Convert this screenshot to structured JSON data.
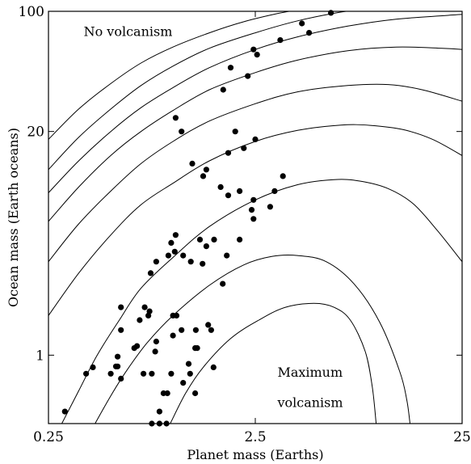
{
  "chart_data": {
    "type": "scatter",
    "title": "",
    "xlabel": "Planet mass (Earths)",
    "ylabel": "Ocean mass (Earth oceans)",
    "xscale": "log",
    "yscale": "log",
    "xlim": [
      0.25,
      25
    ],
    "ylim": [
      0.4,
      100
    ],
    "xticks": [
      0.25,
      2.5,
      25
    ],
    "xtick_labels": [
      "0.25",
      "2.5",
      "25"
    ],
    "yticks": [
      1,
      20,
      100
    ],
    "ytick_labels": [
      "1",
      "20",
      "100"
    ],
    "grid": false,
    "annotations": [
      {
        "text": "No volcanism",
        "x": 0.37,
        "y": 72
      },
      {
        "text": "Maximum",
        "x": 3.2,
        "y": 0.75
      },
      {
        "text": "volcanism",
        "x": 3.2,
        "y": 0.5
      }
    ],
    "points": [
      [
        0.3,
        0.47
      ],
      [
        0.38,
        0.78
      ],
      [
        0.41,
        0.85
      ],
      [
        0.5,
        0.78
      ],
      [
        0.54,
        0.86
      ],
      [
        0.56,
        0.73
      ],
      [
        0.54,
        0.98
      ],
      [
        0.56,
        1.4
      ],
      [
        0.53,
        0.86
      ],
      [
        0.56,
        1.9
      ],
      [
        0.65,
        1.1
      ],
      [
        0.67,
        1.13
      ],
      [
        0.69,
        1.6
      ],
      [
        0.72,
        0.78
      ],
      [
        0.73,
        1.9
      ],
      [
        0.76,
        1.7
      ],
      [
        0.77,
        1.8
      ],
      [
        0.78,
        3.0
      ],
      [
        0.83,
        1.2
      ],
      [
        0.79,
        0.78
      ],
      [
        0.82,
        1.05
      ],
      [
        0.86,
        0.47
      ],
      [
        0.9,
        0.6
      ],
      [
        0.94,
        0.6
      ],
      [
        0.98,
        0.78
      ],
      [
        1.0,
        1.7
      ],
      [
        1.0,
        1.3
      ],
      [
        1.04,
        1.7
      ],
      [
        1.1,
        1.4
      ],
      [
        1.12,
        0.69
      ],
      [
        1.28,
        0.6
      ],
      [
        1.19,
        0.89
      ],
      [
        1.21,
        0.78
      ],
      [
        1.29,
        1.4
      ],
      [
        1.28,
        1.1
      ],
      [
        1.31,
        1.1
      ],
      [
        1.48,
        1.5
      ],
      [
        1.53,
        1.4
      ],
      [
        1.57,
        0.85
      ],
      [
        0.79,
        0.4
      ],
      [
        0.86,
        0.4
      ],
      [
        0.93,
        0.4
      ],
      [
        0.83,
        3.5
      ],
      [
        0.95,
        3.8
      ],
      [
        0.98,
        4.5
      ],
      [
        1.02,
        4.0
      ],
      [
        1.12,
        3.8
      ],
      [
        1.22,
        3.5
      ],
      [
        1.35,
        4.7
      ],
      [
        1.39,
        3.4
      ],
      [
        1.45,
        4.3
      ],
      [
        1.58,
        4.7
      ],
      [
        1.82,
        3.8
      ],
      [
        1.74,
        2.6
      ],
      [
        1.03,
        5.0
      ],
      [
        1.1,
        20.0
      ],
      [
        1.03,
        24.0
      ],
      [
        1.24,
        13.0
      ],
      [
        1.4,
        11.0
      ],
      [
        1.45,
        12.0
      ],
      [
        1.7,
        9.5
      ],
      [
        1.85,
        8.5
      ],
      [
        2.1,
        4.7
      ],
      [
        2.4,
        7.0
      ],
      [
        2.45,
        6.2
      ],
      [
        2.1,
        9.0
      ],
      [
        2.45,
        8.0
      ],
      [
        2.95,
        7.3
      ],
      [
        1.85,
        15.0
      ],
      [
        2.0,
        20.0
      ],
      [
        2.2,
        16.0
      ],
      [
        2.5,
        18.0
      ],
      [
        3.4,
        11.0
      ],
      [
        3.1,
        9.0
      ],
      [
        1.75,
        35.0
      ],
      [
        1.9,
        47.0
      ],
      [
        2.3,
        42.0
      ],
      [
        2.55,
        56.0
      ],
      [
        3.3,
        68.0
      ],
      [
        4.2,
        85.0
      ],
      [
        4.55,
        75.0
      ],
      [
        5.8,
        98.0
      ],
      [
        2.45,
        60.0
      ]
    ],
    "point_color": "#000000",
    "curves": [
      {
        "name": "",
        "xy": [
          [
            0.25,
            18.0
          ],
          [
            0.35,
            27.0
          ],
          [
            0.5,
            38.0
          ],
          [
            0.7,
            50.0
          ],
          [
            1.0,
            62.0
          ],
          [
            1.5,
            75.0
          ],
          [
            2.2,
            87.0
          ],
          [
            3.2,
            97.0
          ],
          [
            4.2,
            103.0
          ]
        ]
      },
      {
        "name": "",
        "xy": [
          [
            0.25,
            12.0
          ],
          [
            0.35,
            18.5
          ],
          [
            0.5,
            27.0
          ],
          [
            0.7,
            37.0
          ],
          [
            1.0,
            48.0
          ],
          [
            1.5,
            61.0
          ],
          [
            2.5,
            75.0
          ],
          [
            4.0,
            88.0
          ],
          [
            6.5,
            99.0
          ],
          [
            9.0,
            104.0
          ]
        ]
      },
      {
        "name": "",
        "xy": [
          [
            0.25,
            8.8
          ],
          [
            0.35,
            13.5
          ],
          [
            0.5,
            20.0
          ],
          [
            0.7,
            27.5
          ],
          [
            1.0,
            36.0
          ],
          [
            1.5,
            47.0
          ],
          [
            2.5,
            60.0
          ],
          [
            4.0,
            71.0
          ],
          [
            7.0,
            82.0
          ],
          [
            12.0,
            90.0
          ],
          [
            25.0,
            96.0
          ]
        ]
      },
      {
        "name": "",
        "xy": [
          [
            0.25,
            6.0
          ],
          [
            0.35,
            9.5
          ],
          [
            0.5,
            14.5
          ],
          [
            0.7,
            20.0
          ],
          [
            1.0,
            26.5
          ],
          [
            1.5,
            35.0
          ],
          [
            2.5,
            44.0
          ],
          [
            4.0,
            52.0
          ],
          [
            7.0,
            59.0
          ],
          [
            12.0,
            62.0
          ],
          [
            20.0,
            61.0
          ],
          [
            25.0,
            60.0
          ]
        ]
      },
      {
        "name": "",
        "xy": [
          [
            0.25,
            3.5
          ],
          [
            0.35,
            5.8
          ],
          [
            0.5,
            9.0
          ],
          [
            0.7,
            13.0
          ],
          [
            1.0,
            17.5
          ],
          [
            1.5,
            23.0
          ],
          [
            2.5,
            29.0
          ],
          [
            4.0,
            34.0
          ],
          [
            7.0,
            37.0
          ],
          [
            11.0,
            37.5
          ],
          [
            16.0,
            35.0
          ],
          [
            25.0,
            30.0
          ]
        ]
      },
      {
        "name": "",
        "xy": [
          [
            0.25,
            1.7
          ],
          [
            0.35,
            3.0
          ],
          [
            0.5,
            5.0
          ],
          [
            0.7,
            7.5
          ],
          [
            1.0,
            10.0
          ],
          [
            1.5,
            13.5
          ],
          [
            2.5,
            17.5
          ],
          [
            4.0,
            20.3
          ],
          [
            6.5,
            21.8
          ],
          [
            9.0,
            21.7
          ],
          [
            13.0,
            20.5
          ],
          [
            18.0,
            18.0
          ],
          [
            25.0,
            14.5
          ]
        ]
      },
      {
        "name": "",
        "xy": [
          [
            0.29,
            0.4
          ],
          [
            0.35,
            0.62
          ],
          [
            0.43,
            1.0
          ],
          [
            0.55,
            1.6
          ],
          [
            0.7,
            2.45
          ],
          [
            1.0,
            3.7
          ],
          [
            1.5,
            5.6
          ],
          [
            2.5,
            8.0
          ],
          [
            4.0,
            9.8
          ],
          [
            6.0,
            10.5
          ],
          [
            8.0,
            10.3
          ],
          [
            11.0,
            9.3
          ],
          [
            14.5,
            7.6
          ],
          [
            19.0,
            5.3
          ],
          [
            25.0,
            3.5
          ]
        ]
      },
      {
        "name": "",
        "xy": [
          [
            0.42,
            0.4
          ],
          [
            0.5,
            0.58
          ],
          [
            0.6,
            0.82
          ],
          [
            0.75,
            1.18
          ],
          [
            1.0,
            1.7
          ],
          [
            1.5,
            2.55
          ],
          [
            2.2,
            3.35
          ],
          [
            3.0,
            3.75
          ],
          [
            4.0,
            3.8
          ],
          [
            5.5,
            3.5
          ],
          [
            7.5,
            2.6
          ],
          [
            10.0,
            1.55
          ],
          [
            12.5,
            0.8
          ],
          [
            13.5,
            0.55
          ],
          [
            14.0,
            0.4
          ]
        ]
      },
      {
        "name": "",
        "xy": [
          [
            0.97,
            0.4
          ],
          [
            1.15,
            0.6
          ],
          [
            1.4,
            0.85
          ],
          [
            1.9,
            1.25
          ],
          [
            2.6,
            1.6
          ],
          [
            3.5,
            1.9
          ],
          [
            4.8,
            2.0
          ],
          [
            6.0,
            1.9
          ],
          [
            7.2,
            1.6
          ],
          [
            8.5,
            1.05
          ],
          [
            9.2,
            0.65
          ],
          [
            9.6,
            0.4
          ]
        ]
      }
    ]
  }
}
